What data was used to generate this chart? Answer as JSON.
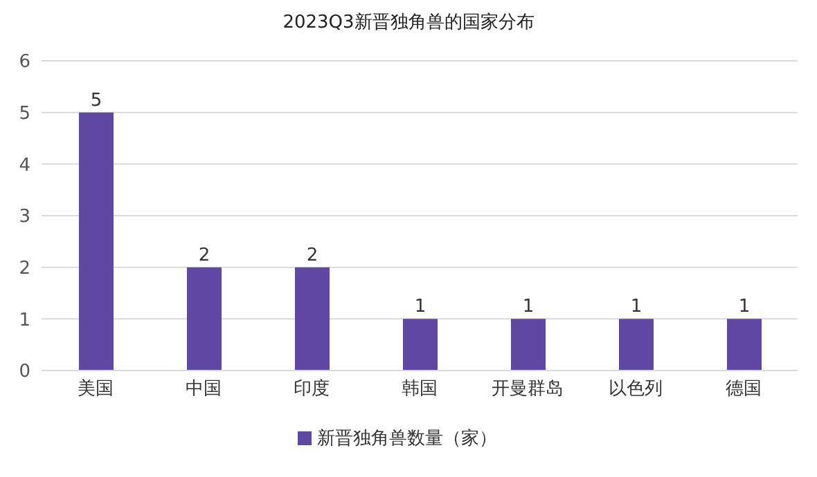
{
  "chart_data": {
    "type": "bar",
    "title": "2023Q3新晋独角兽的国家分布",
    "categories": [
      "美国",
      "中国",
      "印度",
      "韩国",
      "开曼群岛",
      "以色列",
      "德国"
    ],
    "series": [
      {
        "name": "新晋独角兽数量（家）",
        "color": "#5e48a3",
        "values": [
          5,
          2,
          2,
          1,
          1,
          1,
          1
        ]
      }
    ],
    "ylim": [
      0,
      6
    ],
    "yticks": [
      0,
      1,
      2,
      3,
      4,
      5,
      6
    ],
    "grid": "y",
    "legend": "bottom",
    "data_labels": true
  }
}
